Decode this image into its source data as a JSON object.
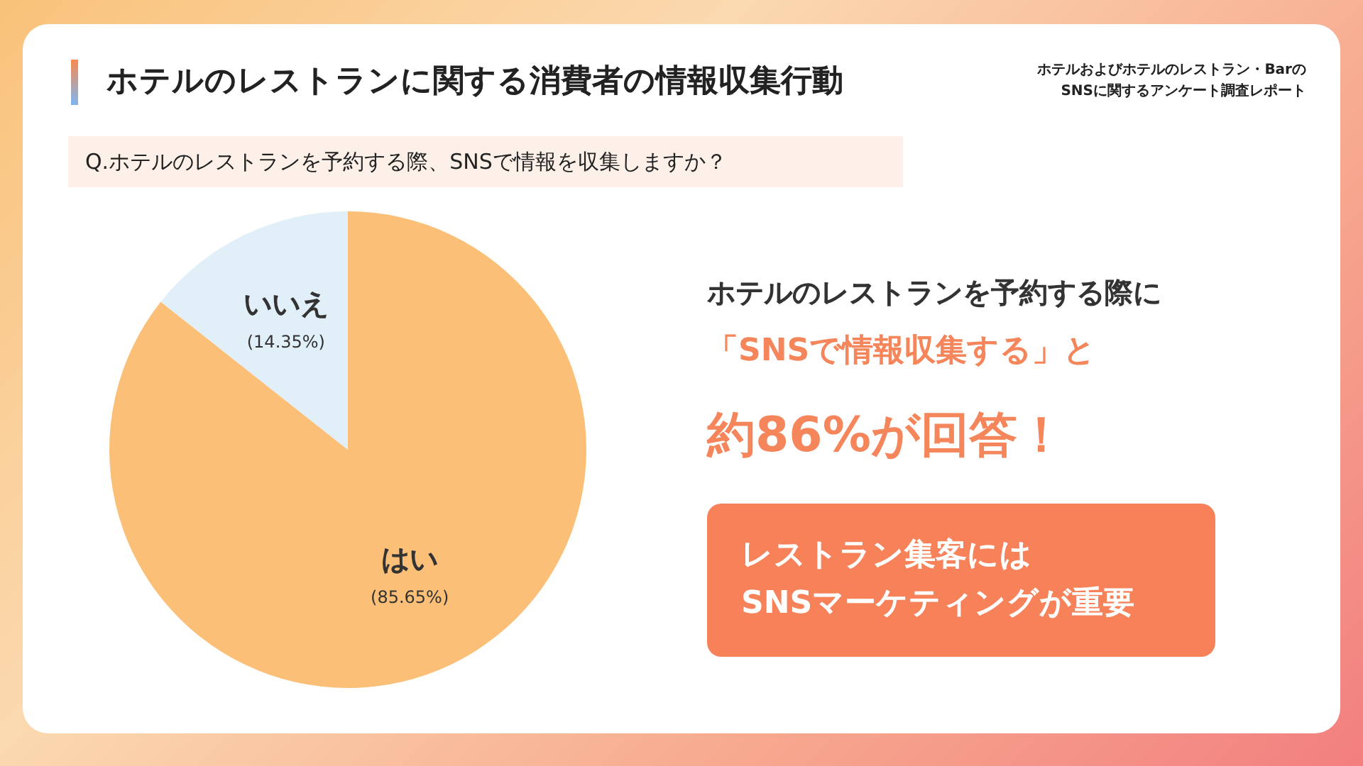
{
  "chart_data": {
    "type": "pie",
    "title": "ホテルのレストランに関する消費者の情報収集行動",
    "subtitle": "Q.ホテルのレストランを予約する際、SNSで情報を収集しますか？",
    "categories": [
      "はい",
      "いいえ"
    ],
    "values": [
      85.65,
      14.35
    ],
    "value_labels": [
      "(85.65%)",
      "(14.35%)"
    ],
    "colors": [
      "#fbbf77",
      "#e1eff8"
    ],
    "annotations": [
      "ホテルおよびホテルのレストラン・Barの\nSNSに関するアンケート調査レポート",
      "ホテルのレストランを予約する際に",
      "「SNSで情報収集する」と",
      "約86%が回答！",
      "レストラン集客には\nSNSマーケティングが重要"
    ]
  }
}
